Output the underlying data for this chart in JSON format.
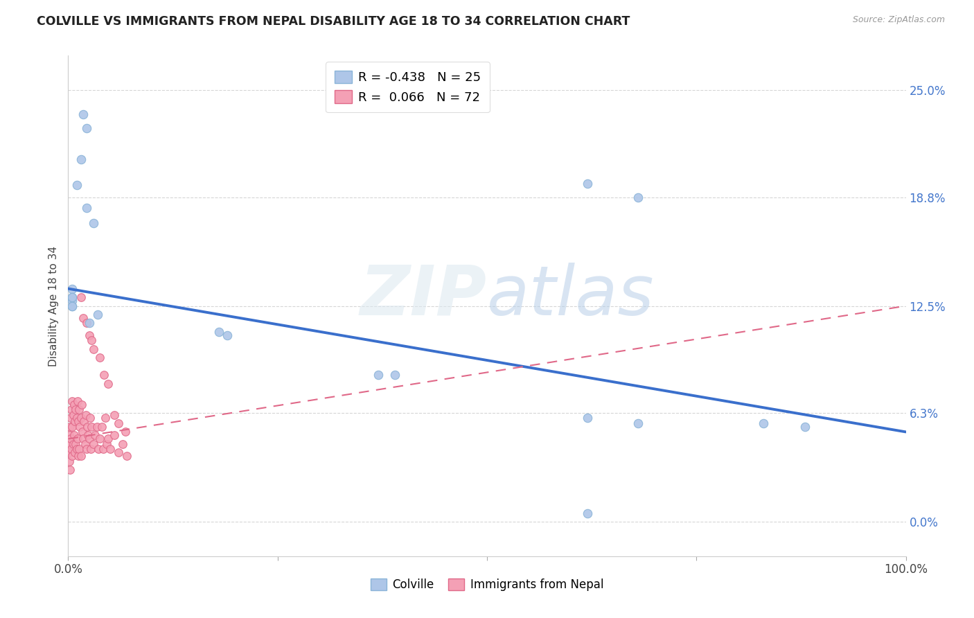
{
  "title": "COLVILLE VS IMMIGRANTS FROM NEPAL DISABILITY AGE 18 TO 34 CORRELATION CHART",
  "source": "Source: ZipAtlas.com",
  "ylabel": "Disability Age 18 to 34",
  "background_color": "#ffffff",
  "grid_color": "#cccccc",
  "colville_color": "#aec6e8",
  "colville_edge_color": "#8ab4d8",
  "nepal_color": "#f4a0b5",
  "nepal_edge_color": "#e06888",
  "colville_line_color": "#3a6fcc",
  "nepal_line_color": "#e06888",
  "legend_r_colville": "-0.438",
  "legend_n_colville": "25",
  "legend_r_nepal": "0.066",
  "legend_n_nepal": "72",
  "colville_x": [
    0.018,
    0.022,
    0.015,
    0.01,
    0.022,
    0.03,
    0.005,
    0.005,
    0.035,
    0.025,
    0.005,
    0.005,
    0.18,
    0.19,
    0.37,
    0.39,
    0.62,
    0.68,
    0.62,
    0.68,
    0.83,
    0.88,
    0.62,
    0.005,
    0.005
  ],
  "colville_y": [
    0.236,
    0.228,
    0.21,
    0.195,
    0.182,
    0.173,
    0.135,
    0.128,
    0.12,
    0.115,
    0.13,
    0.125,
    0.11,
    0.108,
    0.085,
    0.085,
    0.196,
    0.188,
    0.06,
    0.057,
    0.057,
    0.055,
    0.005,
    0.13,
    0.125
  ],
  "nepal_x": [
    0.001,
    0.001,
    0.001,
    0.002,
    0.002,
    0.002,
    0.003,
    0.003,
    0.004,
    0.004,
    0.005,
    0.005,
    0.005,
    0.006,
    0.006,
    0.007,
    0.007,
    0.008,
    0.008,
    0.009,
    0.009,
    0.01,
    0.01,
    0.011,
    0.011,
    0.012,
    0.012,
    0.013,
    0.013,
    0.014,
    0.015,
    0.015,
    0.016,
    0.017,
    0.018,
    0.019,
    0.02,
    0.021,
    0.022,
    0.023,
    0.024,
    0.025,
    0.026,
    0.027,
    0.028,
    0.03,
    0.032,
    0.034,
    0.036,
    0.038,
    0.04,
    0.042,
    0.044,
    0.046,
    0.048,
    0.05,
    0.055,
    0.06,
    0.065,
    0.07,
    0.015,
    0.018,
    0.025,
    0.03,
    0.038,
    0.043,
    0.048,
    0.055,
    0.06,
    0.068,
    0.022,
    0.028
  ],
  "nepal_y": [
    0.05,
    0.04,
    0.035,
    0.055,
    0.045,
    0.03,
    0.06,
    0.048,
    0.065,
    0.042,
    0.07,
    0.055,
    0.038,
    0.062,
    0.045,
    0.068,
    0.05,
    0.058,
    0.04,
    0.065,
    0.045,
    0.06,
    0.042,
    0.07,
    0.048,
    0.058,
    0.038,
    0.065,
    0.042,
    0.055,
    0.06,
    0.038,
    0.068,
    0.052,
    0.048,
    0.058,
    0.045,
    0.062,
    0.042,
    0.055,
    0.05,
    0.048,
    0.06,
    0.042,
    0.055,
    0.045,
    0.05,
    0.055,
    0.042,
    0.048,
    0.055,
    0.042,
    0.06,
    0.045,
    0.048,
    0.042,
    0.05,
    0.04,
    0.045,
    0.038,
    0.13,
    0.118,
    0.108,
    0.1,
    0.095,
    0.085,
    0.08,
    0.062,
    0.057,
    0.052,
    0.115,
    0.105
  ],
  "colville_trend_x": [
    0.0,
    1.0
  ],
  "colville_trend_y": [
    0.135,
    0.052
  ],
  "nepal_trend_x": [
    0.0,
    1.0
  ],
  "nepal_trend_y": [
    0.048,
    0.125
  ],
  "yticks": [
    0.0,
    0.063,
    0.125,
    0.188,
    0.25
  ],
  "ytick_labels": [
    "0.0%",
    "6.3%",
    "12.5%",
    "18.8%",
    "25.0%"
  ],
  "xlim": [
    0.0,
    1.0
  ],
  "ylim_min": -0.02,
  "ylim_max": 0.27
}
